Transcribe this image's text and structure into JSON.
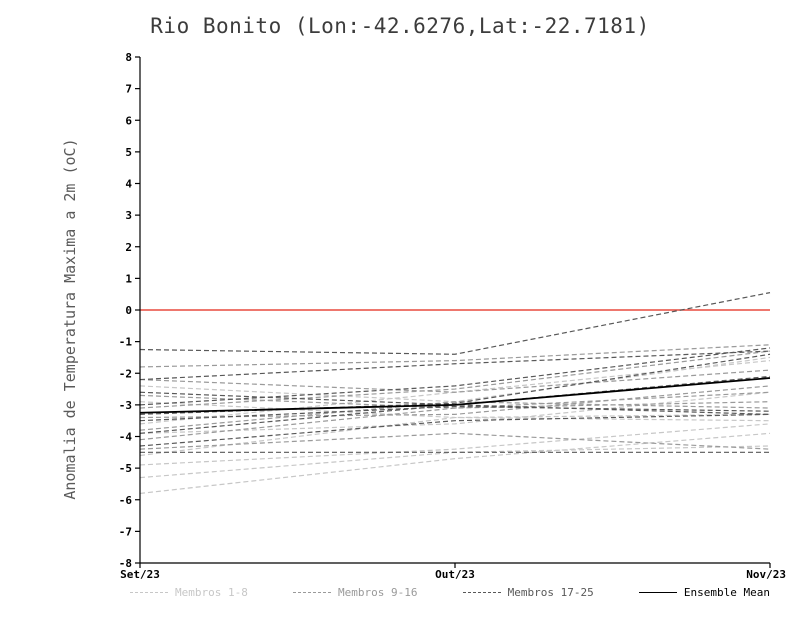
{
  "chart_data": {
    "type": "line",
    "title": "Rio Bonito (Lon:-42.6276,Lat:-22.7181)",
    "ylabel": "Anomalia de Temperatura Maxima a 2m (oC)",
    "xlabel": "",
    "x_ticks": [
      "Set/23",
      "Out/23",
      "Nov/23"
    ],
    "ylim": [
      -8,
      8
    ],
    "y_tick_step": 1,
    "grid": false,
    "legend_position": "bottom",
    "zero_line": {
      "value": 0,
      "color": "#e84a3f"
    },
    "axis_color": "#000000",
    "groups": [
      {
        "name": "Membros 1-8",
        "color": "#c7c7c7",
        "style": "dashed"
      },
      {
        "name": "Membros 9-16",
        "color": "#9a9a9a",
        "style": "dashed"
      },
      {
        "name": "Membros 17-25",
        "color": "#585858",
        "style": "dashed"
      },
      {
        "name": "Ensemble Mean",
        "color": "#000000",
        "style": "solid"
      }
    ],
    "x": [
      "Set/23",
      "Out/23",
      "Nov/23"
    ],
    "members": [
      {
        "name": "Membro 1",
        "group": 0,
        "values": [
          -5.8,
          -4.7,
          -3.9
        ]
      },
      {
        "name": "Membro 2",
        "group": 0,
        "values": [
          -5.3,
          -4.5,
          -4.3
        ]
      },
      {
        "name": "Membro 3",
        "group": 0,
        "values": [
          -4.9,
          -4.4,
          -3.6
        ]
      },
      {
        "name": "Membro 4",
        "group": 0,
        "values": [
          -4.6,
          -3.4,
          -3.3
        ]
      },
      {
        "name": "Membro 5",
        "group": 0,
        "values": [
          -3.9,
          -3.6,
          -2.6
        ]
      },
      {
        "name": "Membro 6",
        "group": 0,
        "values": [
          -3.6,
          -2.6,
          -1.6
        ]
      },
      {
        "name": "Membro 7",
        "group": 0,
        "values": [
          -2.9,
          -3.4,
          -3.5
        ]
      },
      {
        "name": "Membro 8",
        "group": 0,
        "values": [
          -2.4,
          -2.9,
          -1.5
        ]
      },
      {
        "name": "Membro 9",
        "group": 1,
        "values": [
          -4.4,
          -3.9,
          -4.4
        ]
      },
      {
        "name": "Membro 10",
        "group": 1,
        "values": [
          -4.1,
          -3.1,
          -2.9
        ]
      },
      {
        "name": "Membro 11",
        "group": 1,
        "values": [
          -3.8,
          -2.9,
          -3.1
        ]
      },
      {
        "name": "Membro 12",
        "group": 1,
        "values": [
          -3.4,
          -3.3,
          -2.4
        ]
      },
      {
        "name": "Membro 13",
        "group": 1,
        "values": [
          -3.1,
          -2.5,
          -1.3
        ]
      },
      {
        "name": "Membro 14",
        "group": 1,
        "values": [
          -2.7,
          -3.1,
          -2.6
        ]
      },
      {
        "name": "Membro 15",
        "group": 1,
        "values": [
          -2.2,
          -2.6,
          -1.9
        ]
      },
      {
        "name": "Membro 16",
        "group": 1,
        "values": [
          -1.8,
          -1.6,
          -1.1
        ]
      },
      {
        "name": "Membro 17",
        "group": 2,
        "values": [
          -4.5,
          -4.5,
          -4.5
        ]
      },
      {
        "name": "Membro 18",
        "group": 2,
        "values": [
          -4.3,
          -3.5,
          -3.3
        ]
      },
      {
        "name": "Membro 19",
        "group": 2,
        "values": [
          -3.9,
          -3.0,
          -2.1
        ]
      },
      {
        "name": "Membro 20",
        "group": 2,
        "values": [
          -3.5,
          -3.05,
          -3.2
        ]
      },
      {
        "name": "Membro 21",
        "group": 2,
        "values": [
          -3.3,
          -2.95,
          -1.4
        ]
      },
      {
        "name": "Membro 22",
        "group": 2,
        "values": [
          -3.0,
          -2.4,
          -1.2
        ]
      },
      {
        "name": "Membro 23",
        "group": 2,
        "values": [
          -2.6,
          -3.0,
          -3.3
        ]
      },
      {
        "name": "Membro 24",
        "group": 2,
        "values": [
          -2.2,
          -1.7,
          -1.3
        ]
      },
      {
        "name": "Membro 25",
        "group": 2,
        "values": [
          -1.25,
          -1.4,
          0.55
        ]
      }
    ],
    "ensemble_mean": {
      "name": "Ensemble Mean",
      "values": [
        -3.25,
        -3.0,
        -2.15
      ]
    }
  }
}
